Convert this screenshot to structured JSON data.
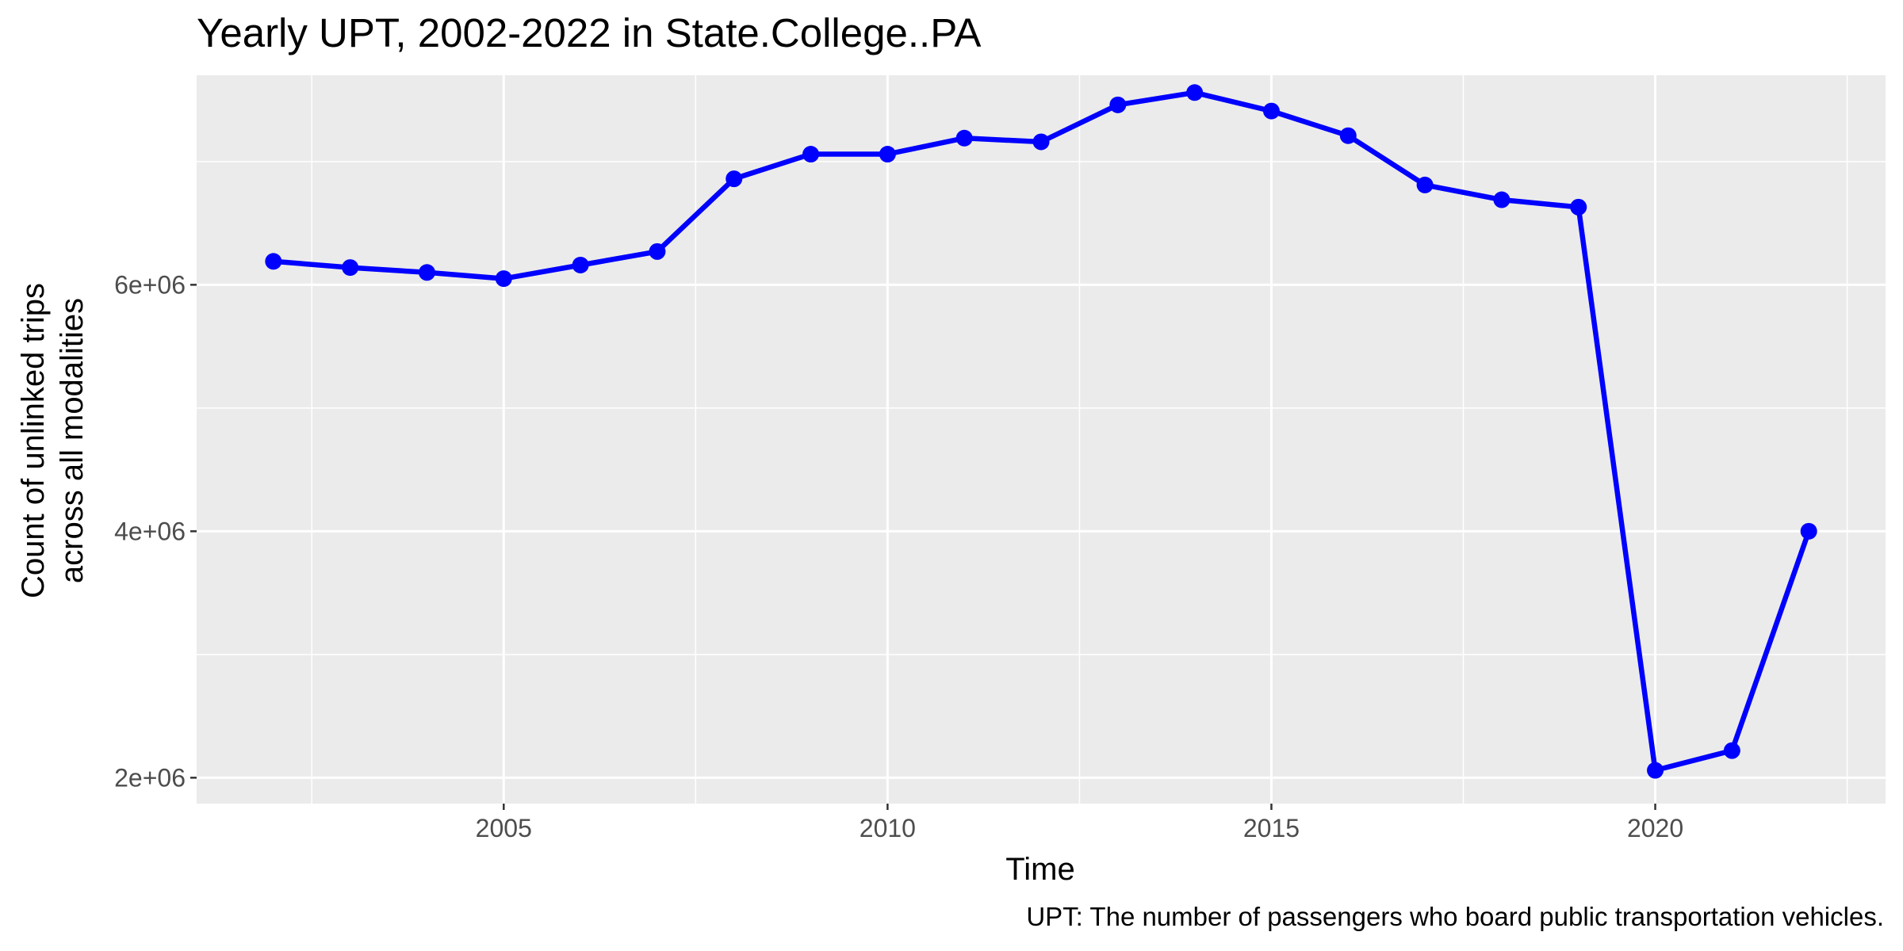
{
  "chart_data": {
    "type": "line",
    "title": "Yearly UPT, 2002-2022 in State.College..PA",
    "xlabel": "Time",
    "ylabel_lines": [
      "Count of unlinked trips",
      "across all modalities"
    ],
    "caption": "UPT: The number of passengers who board public transportation vehicles.",
    "xlim": [
      2001,
      2023
    ],
    "ylim": [
      1790000,
      7700000
    ],
    "x_ticks": [
      2005,
      2010,
      2015,
      2020
    ],
    "x_tick_labels": [
      "2005",
      "2010",
      "2015",
      "2020"
    ],
    "y_ticks": [
      2000000,
      4000000,
      6000000
    ],
    "y_tick_labels": [
      "2e+06",
      "4e+06",
      "6e+06"
    ],
    "grid": true,
    "line_color": "#0000ff",
    "panel_color": "#ebebeb",
    "grid_color": "#ffffff",
    "series": [
      {
        "x": [
          2002,
          2003,
          2004,
          2005,
          2006,
          2007,
          2008,
          2009,
          2010,
          2011,
          2012,
          2013,
          2014,
          2015,
          2016,
          2017,
          2018,
          2019,
          2020,
          2021,
          2022
        ],
        "values": [
          6190000,
          6140000,
          6100000,
          6050000,
          6160000,
          6270000,
          6860000,
          7060000,
          7060000,
          7190000,
          7160000,
          7460000,
          7560000,
          7410000,
          7210000,
          6810000,
          6690000,
          6630000,
          2060000,
          2220000,
          4000000
        ]
      }
    ]
  }
}
